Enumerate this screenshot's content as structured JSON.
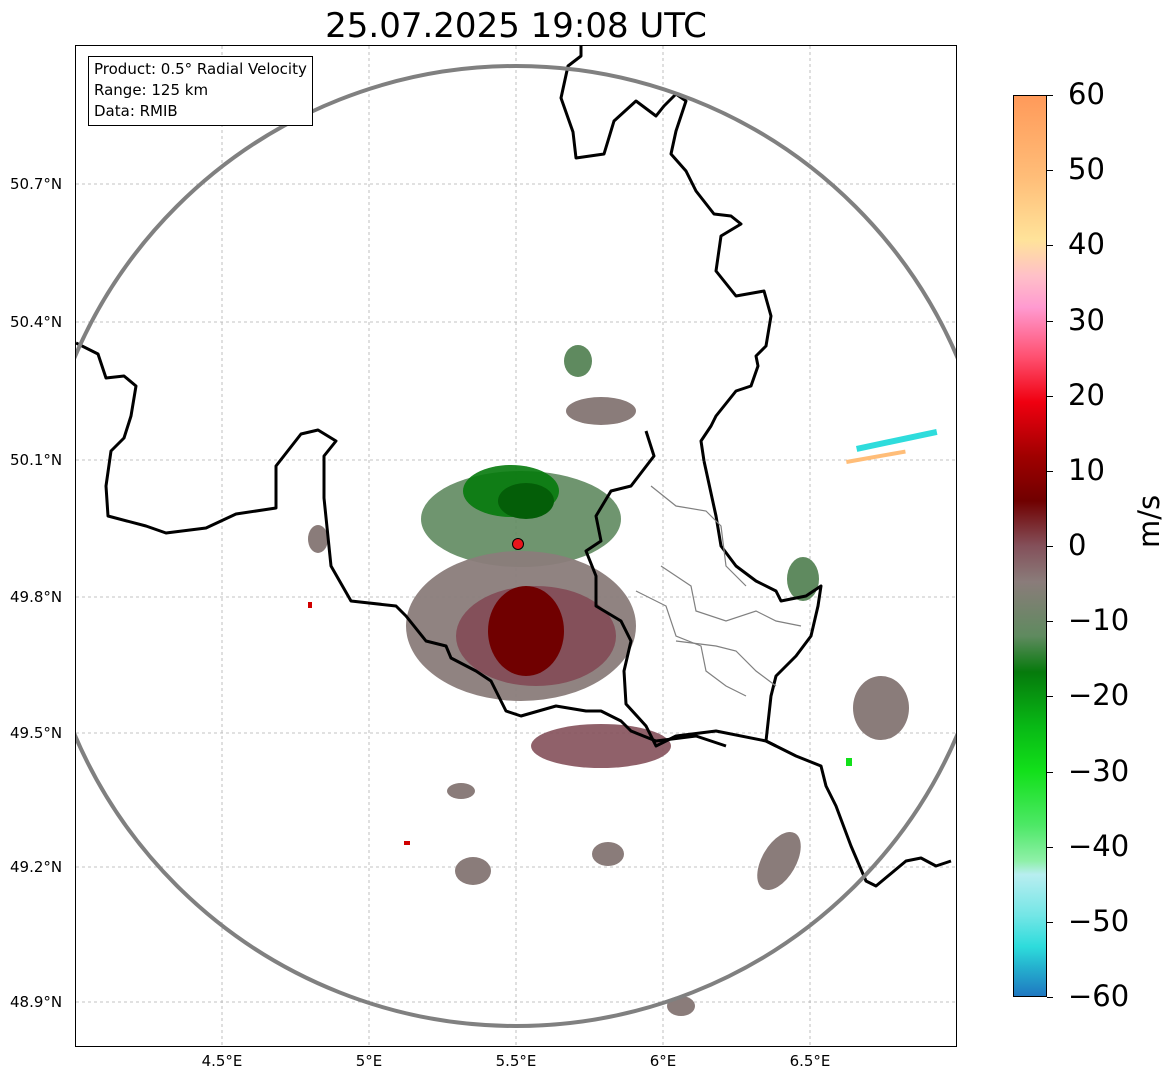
{
  "title": "25.07.2025 19:08 UTC",
  "info": {
    "product": "Product: 0.5° Radial Velocity",
    "range": "Range: 125 km",
    "data": "Data: RMIB"
  },
  "map": {
    "lat_ticks": [
      "50.7°N",
      "50.4°N",
      "50.1°N",
      "49.8°N",
      "49.5°N",
      "49.2°N",
      "48.9°N"
    ],
    "lon_ticks": [
      "4.5°E",
      "5°E",
      "5.5°E",
      "6°E",
      "6.5°E"
    ],
    "lon_extent": [
      4.0,
      7.0
    ],
    "lat_extent": [
      48.8,
      50.98
    ],
    "radar_site": {
      "lon": 5.505,
      "lat": 49.915
    },
    "range_ring_km": 125,
    "colors": {
      "border": "#000000",
      "region_border": "#808080",
      "range_ring": "#808080",
      "radar_marker": "#e8141b",
      "grid": "#b0b0b0"
    }
  },
  "colorbar": {
    "label": "m/s",
    "ticks": [
      "60",
      "50",
      "40",
      "30",
      "20",
      "10",
      "0",
      "−10",
      "−20",
      "−30",
      "−40",
      "−50",
      "−60"
    ],
    "range": [
      -60,
      60
    ],
    "stops": [
      [
        "#1f78c1",
        0
      ],
      [
        "#25b3cf",
        3.3
      ],
      [
        "#2edcdc",
        5.5
      ],
      [
        "#74e6e6",
        9
      ],
      [
        "#b8eef0",
        13.5
      ],
      [
        "#8ff0a8",
        15
      ],
      [
        "#4de866",
        19
      ],
      [
        "#12e01a",
        25
      ],
      [
        "#08b815",
        30
      ],
      [
        "#067a0c",
        36
      ],
      [
        "#5f8a5f",
        40
      ],
      [
        "#8a7c7a",
        46
      ],
      [
        "#84505a",
        50
      ],
      [
        "#700000",
        55
      ],
      [
        "#a00000",
        60
      ],
      [
        "#f00010",
        66
      ],
      [
        "#ff5070",
        71
      ],
      [
        "#ff9ad0",
        76.5
      ],
      [
        "#ffc0c8",
        80
      ],
      [
        "#ffe39a",
        84
      ],
      [
        "#ffbd78",
        91
      ],
      [
        "#ff9a5a",
        100
      ]
    ]
  }
}
